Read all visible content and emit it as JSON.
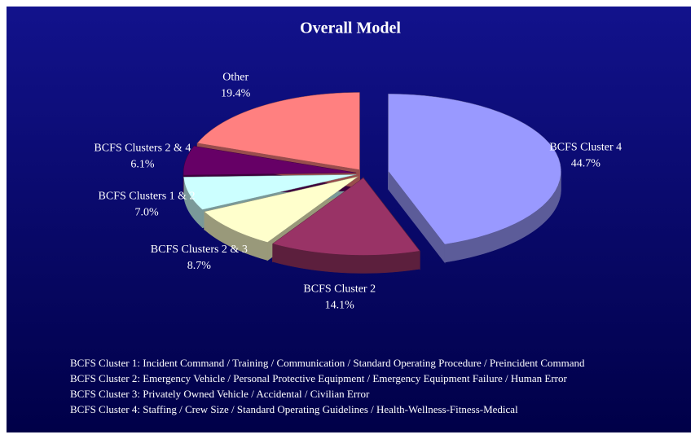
{
  "chart_data": {
    "type": "pie",
    "title": "Overall Model",
    "categories": [
      "BCFS Cluster 4",
      "BCFS Cluster 2",
      "BCFS Clusters 2 & 3",
      "BCFS Clusters 1 & 2",
      "BCFS Clusters 2 & 4",
      "Other"
    ],
    "values": [
      44.7,
      14.1,
      8.7,
      7.0,
      6.1,
      19.4
    ],
    "value_labels": [
      "44.7%",
      "14.1%",
      "8.7%",
      "7.0%",
      "6.1%",
      "19.4%"
    ],
    "colors": [
      "#9999ff",
      "#993366",
      "#ffffcc",
      "#ccffff",
      "#660066",
      "#ff8080"
    ],
    "notes": [
      "BCFS Cluster 1:  Incident Command / Training / Communication / Standard Operating Procedure / Preincident Command",
      "BCFS Cluster 2:  Emergency Vehicle / Personal Protective Equipment / Emergency Equipment Failure / Human Error",
      "BCFS Cluster 3:  Privately Owned Vehicle / Accidental / Civilian Error",
      "BCFS Cluster 4:  Staffing / Crew Size / Standard Operating Guidelines / Health-Wellness-Fitness-Medical"
    ]
  }
}
